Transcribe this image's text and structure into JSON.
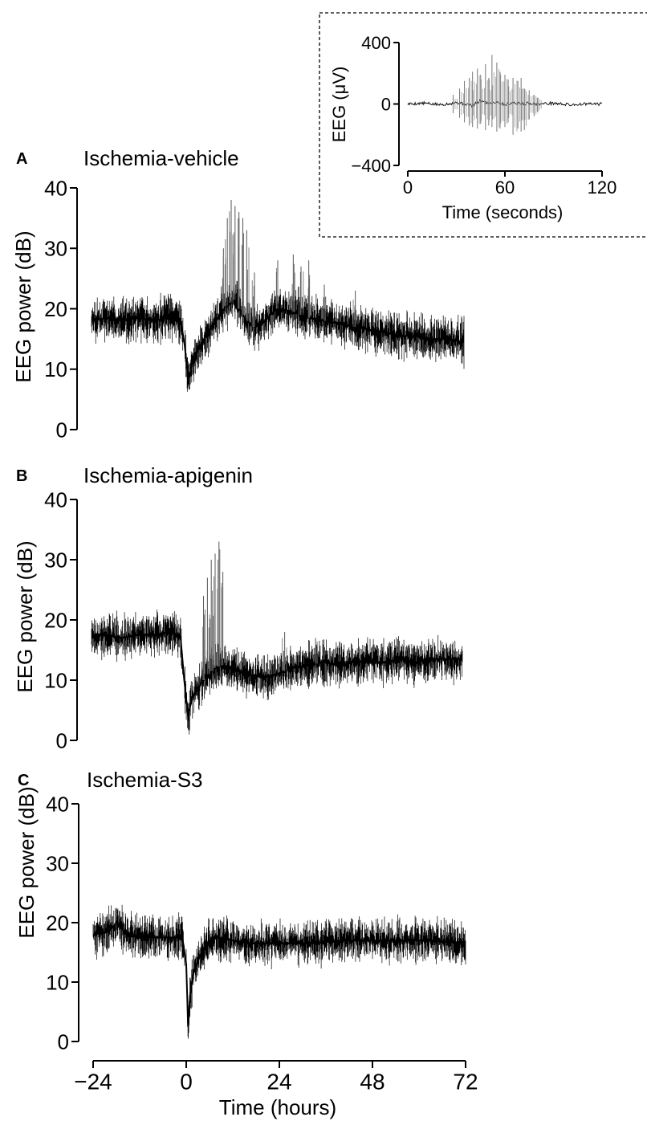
{
  "chart_data": [
    {
      "type": "line",
      "panel_letter": "A",
      "title": "Ischemia-vehicle",
      "xlabel": "",
      "ylabel": "EEG power (dB)",
      "xlim": [
        -24,
        72
      ],
      "ylim": [
        0,
        40
      ],
      "y_ticks": [
        "0",
        "10",
        "20",
        "30",
        "40"
      ],
      "series": [
        {
          "x": [
            -24,
            -20,
            -16,
            -12,
            -8,
            -4,
            -1,
            0,
            1,
            2,
            4,
            6,
            8,
            10,
            12,
            13,
            14,
            16,
            18,
            20,
            22,
            24,
            28,
            32,
            36,
            40,
            44,
            48,
            52,
            56,
            60,
            64,
            68,
            72
          ],
          "y": [
            18,
            18.5,
            18,
            18.5,
            18,
            18.5,
            18,
            14,
            8,
            11,
            14,
            16,
            18,
            20,
            21,
            21.5,
            20,
            18,
            17,
            17.5,
            19,
            20,
            19.5,
            18.5,
            18,
            17.5,
            17,
            16.5,
            16,
            15.5,
            15.5,
            15,
            15,
            14.5
          ]
        }
      ],
      "spikes": {
        "x": [
          10,
          11,
          12,
          13,
          14,
          15,
          16,
          18,
          24,
          28,
          30,
          32,
          36,
          44
        ],
        "y": [
          30,
          35,
          38,
          37,
          36,
          35,
          33,
          26,
          28,
          29,
          27,
          28,
          24,
          23
        ]
      }
    },
    {
      "type": "line",
      "panel_letter": "B",
      "title": "Ischemia-apigenin",
      "xlabel": "",
      "ylabel": "EEG power (dB)",
      "xlim": [
        -24,
        72
      ],
      "ylim": [
        0,
        40
      ],
      "y_ticks": [
        "0",
        "10",
        "20",
        "30",
        "40"
      ],
      "series": [
        {
          "x": [
            -24,
            -20,
            -16,
            -12,
            -8,
            -4,
            -1,
            0,
            1,
            2,
            4,
            6,
            8,
            10,
            12,
            16,
            20,
            24,
            28,
            32,
            36,
            40,
            44,
            48,
            52,
            56,
            60,
            64,
            68,
            72
          ],
          "y": [
            17.5,
            17.5,
            17,
            17.5,
            17.5,
            18,
            17.5,
            10,
            4,
            7,
            9,
            11,
            12,
            12.5,
            12,
            11,
            10.5,
            11,
            12,
            12.5,
            13,
            12.5,
            13,
            13,
            13,
            13.5,
            13,
            13.5,
            13.5,
            13.5
          ]
        }
      ],
      "spikes": {
        "x": [
          5,
          6,
          7,
          8,
          9,
          10,
          26,
          34
        ],
        "y": [
          24,
          27,
          30,
          31,
          33,
          28,
          18,
          17
        ]
      }
    },
    {
      "type": "line",
      "panel_letter": "C",
      "title": "Ischemia-S3",
      "xlabel": "Time (hours)",
      "ylabel": "EEG power (dB)",
      "xlim": [
        -24,
        72
      ],
      "ylim": [
        0,
        40
      ],
      "x_ticks": [
        "−24",
        "0",
        "24",
        "48",
        "72"
      ],
      "y_ticks": [
        "0",
        "10",
        "20",
        "30",
        "40"
      ],
      "series": [
        {
          "x": [
            -24,
            -20,
            -18,
            -16,
            -12,
            -8,
            -4,
            -1,
            0,
            0.5,
            1,
            2,
            4,
            6,
            8,
            12,
            16,
            20,
            24,
            32,
            40,
            48,
            56,
            64,
            72
          ],
          "y": [
            18,
            18.5,
            20,
            18.5,
            17.5,
            17.5,
            17.5,
            17.5,
            13,
            2,
            8,
            12,
            15,
            17,
            17.5,
            17,
            16.5,
            16.5,
            16.5,
            16.5,
            17,
            17,
            17,
            17,
            16.5
          ]
        }
      ],
      "spikes": {
        "x": [],
        "y": []
      }
    },
    {
      "type": "line",
      "panel_letter": "",
      "title": "",
      "xlabel": "Time (seconds)",
      "ylabel": "EEG (μV)",
      "xlim": [
        0,
        120
      ],
      "ylim": [
        -400,
        400
      ],
      "x_ticks": [
        "0",
        "60",
        "120"
      ],
      "y_ticks": [
        "−400",
        "0",
        "400"
      ],
      "series": [
        {
          "x": [
            0,
            10,
            20,
            30,
            40,
            45,
            50,
            55,
            60,
            65,
            70,
            75,
            80,
            90,
            100,
            110,
            120
          ],
          "y": [
            0,
            5,
            -5,
            10,
            -10,
            20,
            5,
            15,
            -5,
            10,
            0,
            5,
            0,
            5,
            -5,
            0,
            0
          ]
        }
      ],
      "bursts": {
        "x": [
          28,
          32,
          35,
          38,
          40,
          43,
          45,
          48,
          50,
          52,
          55,
          57,
          60,
          62,
          65,
          68,
          70,
          72,
          75,
          78,
          80
        ],
        "high": [
          60,
          100,
          150,
          170,
          210,
          230,
          190,
          260,
          170,
          320,
          270,
          210,
          190,
          160,
          170,
          150,
          170,
          100,
          90,
          60,
          40
        ],
        "low": [
          -60,
          -90,
          -120,
          -140,
          -150,
          -160,
          -130,
          -170,
          -140,
          -150,
          -180,
          -160,
          -150,
          -120,
          -200,
          -160,
          -180,
          -170,
          -100,
          -80,
          -50
        ]
      }
    }
  ]
}
